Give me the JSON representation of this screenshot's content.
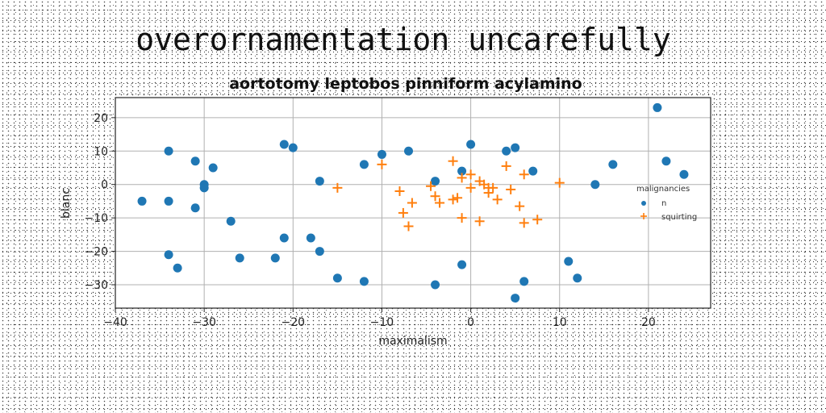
{
  "page": {
    "title": "overornamentation uncarefully"
  },
  "chart_data": {
    "type": "scatter",
    "title": "aortotomy leptobos pinniform acylamino",
    "xlabel": "maximalism",
    "ylabel": "blanc",
    "xlim": [
      -40,
      27
    ],
    "ylim": [
      -37,
      26
    ],
    "xticks": [
      -40,
      -30,
      -20,
      -10,
      0,
      10,
      20
    ],
    "yticks": [
      -30,
      -20,
      -10,
      0,
      10,
      20
    ],
    "xtick_labels": [
      "−40",
      "−30",
      "−20",
      "−10",
      "0",
      "10",
      "20"
    ],
    "ytick_labels": [
      "−30",
      "−20",
      "−10",
      "0",
      "10",
      "20"
    ],
    "grid": true,
    "legend": {
      "title": "malignancies",
      "placement": "center-right"
    },
    "series": [
      {
        "name": "n",
        "marker": "circle",
        "color": "#1f77b4",
        "points": [
          [
            -37,
            -5
          ],
          [
            -34,
            10
          ],
          [
            -34,
            -5
          ],
          [
            -34,
            -21
          ],
          [
            -33,
            -25
          ],
          [
            -31,
            7
          ],
          [
            -31,
            -7
          ],
          [
            -30,
            0
          ],
          [
            -30,
            -1
          ],
          [
            -29,
            5
          ],
          [
            -27,
            -11
          ],
          [
            -26,
            -22
          ],
          [
            -22,
            -22
          ],
          [
            -21,
            12
          ],
          [
            -21,
            -16
          ],
          [
            -20,
            11
          ],
          [
            -18,
            -16
          ],
          [
            -17,
            1
          ],
          [
            -17,
            -20
          ],
          [
            -15,
            -28
          ],
          [
            -12,
            6
          ],
          [
            -12,
            -29
          ],
          [
            -10,
            9
          ],
          [
            -7,
            10
          ],
          [
            -4,
            1
          ],
          [
            -4,
            -30
          ],
          [
            -1,
            4
          ],
          [
            -1,
            -24
          ],
          [
            0,
            12
          ],
          [
            4,
            10
          ],
          [
            5,
            11
          ],
          [
            5,
            -34
          ],
          [
            6,
            -29
          ],
          [
            7,
            4
          ],
          [
            11,
            -23
          ],
          [
            12,
            -28
          ],
          [
            14,
            0
          ],
          [
            16,
            6
          ],
          [
            21,
            23
          ],
          [
            22,
            7
          ],
          [
            24,
            3
          ]
        ]
      },
      {
        "name": "squirting",
        "marker": "plus",
        "color": "#ff7f0e",
        "points": [
          [
            -15,
            -1
          ],
          [
            -10,
            6
          ],
          [
            -8,
            -2
          ],
          [
            -7.6,
            -8.5
          ],
          [
            -7,
            -12.5
          ],
          [
            -6.6,
            -5.5
          ],
          [
            -4.5,
            -0.5
          ],
          [
            -4,
            -3.5
          ],
          [
            -3.5,
            -5.5
          ],
          [
            -2,
            7
          ],
          [
            -2,
            -4.5
          ],
          [
            -1.5,
            -4
          ],
          [
            -1,
            2
          ],
          [
            -1,
            -10
          ],
          [
            0,
            -1
          ],
          [
            0,
            3
          ],
          [
            1,
            1
          ],
          [
            1,
            -11
          ],
          [
            1.5,
            0
          ],
          [
            2,
            -1
          ],
          [
            2,
            -2.5
          ],
          [
            2.5,
            -1
          ],
          [
            3,
            -4.5
          ],
          [
            4,
            5.5
          ],
          [
            4.5,
            -1.5
          ],
          [
            5.5,
            -6.5
          ],
          [
            6,
            -11.5
          ],
          [
            6,
            3
          ],
          [
            7.5,
            -10.5
          ],
          [
            10,
            0.5
          ]
        ]
      }
    ]
  }
}
